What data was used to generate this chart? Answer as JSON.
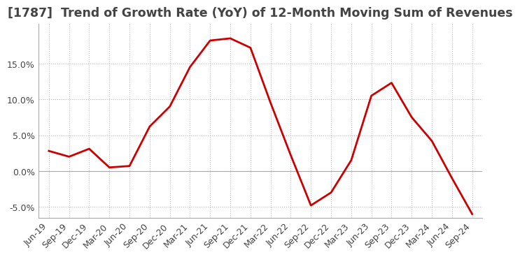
{
  "title": "[1787]  Trend of Growth Rate (YoY) of 12-Month Moving Sum of Revenues",
  "title_fontsize": 12.5,
  "line_color": "#cc0000",
  "background_color": "#ffffff",
  "grid_color": "#bbbbbb",
  "x_labels": [
    "Jun-19",
    "Sep-19",
    "Dec-19",
    "Mar-20",
    "Jun-20",
    "Sep-20",
    "Dec-20",
    "Mar-21",
    "Jun-21",
    "Sep-21",
    "Dec-21",
    "Mar-22",
    "Jun-22",
    "Sep-22",
    "Dec-22",
    "Mar-23",
    "Jun-23",
    "Sep-23",
    "Dec-23",
    "Mar-24",
    "Jun-24",
    "Sep-24"
  ],
  "y_values": [
    2.8,
    2.0,
    3.1,
    0.5,
    0.7,
    6.2,
    9.0,
    14.5,
    18.2,
    18.5,
    17.2,
    9.5,
    2.2,
    -4.8,
    -3.0,
    1.5,
    10.5,
    12.3,
    7.5,
    4.2,
    -1.0,
    -6.0
  ],
  "ylim": [
    -6.5,
    20.5
  ],
  "yticks": [
    -5.0,
    0.0,
    5.0,
    10.0,
    15.0
  ],
  "ytick_labels": [
    "-5.0%",
    "0.0%",
    "5.0%",
    "10.0%",
    "15.0%"
  ],
  "label_color": "#444444",
  "tick_fontsize": 9,
  "line_width": 2.0,
  "spine_color": "#aaaaaa"
}
